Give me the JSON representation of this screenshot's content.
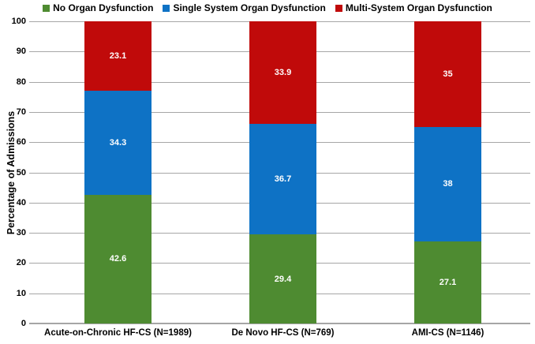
{
  "chart_data": {
    "type": "bar",
    "stacked": true,
    "title": "",
    "ylabel": "Percentage of Admissions",
    "xlabel": "",
    "ylim": [
      0,
      100
    ],
    "yticks": [
      0,
      10,
      20,
      30,
      40,
      50,
      60,
      70,
      80,
      90,
      100
    ],
    "grid": true,
    "legend_position": "top",
    "categories": [
      "Acute-on-Chronic HF-CS (N=1989)",
      "De Novo HF-CS (N=769)",
      "AMI-CS (N=1146)"
    ],
    "series": [
      {
        "name": "No Organ Dysfunction",
        "color": "#4E8B31",
        "values": [
          42.6,
          29.4,
          27.1
        ]
      },
      {
        "name": "Single System Organ Dysfunction",
        "color": "#0E72C5",
        "values": [
          34.3,
          36.7,
          38
        ]
      },
      {
        "name": "Multi-System Organ Dysfunction",
        "color": "#C00A0A",
        "values": [
          23.1,
          33.9,
          35
        ]
      }
    ]
  },
  "colors": {
    "gridline": "#A6A6A6",
    "axis_line": "#A6A6A6",
    "tick_label": "#000000",
    "value_label": "#FFFFFF",
    "background": "#FFFFFF"
  }
}
